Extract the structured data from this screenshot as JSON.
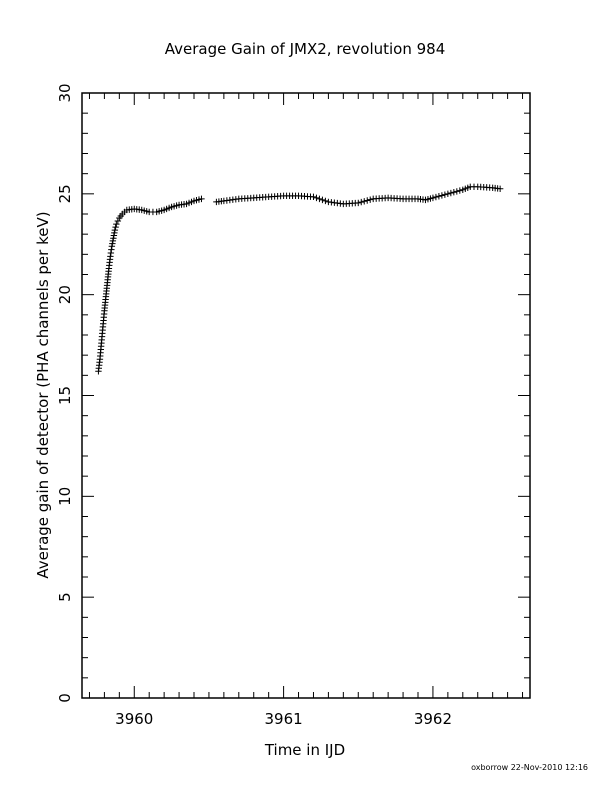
{
  "chart_data": {
    "type": "scatter",
    "title": "Average Gain of JMX2, revolution 984",
    "xlabel": "Time in IJD",
    "ylabel": "Average gain of detector (PHA channels per keV)",
    "xlim": [
      3959.65,
      3962.65
    ],
    "ylim": [
      0,
      30
    ],
    "x_ticks": [
      3960,
      3961,
      3962
    ],
    "y_ticks": [
      0,
      5,
      10,
      15,
      20,
      25,
      30
    ],
    "x_minor_step": 0.1,
    "y_minor_step": 1,
    "marker": "+",
    "grid": false,
    "series": [
      {
        "name": "",
        "segments": [
          [
            [
              3959.76,
              16.2
            ],
            [
              3959.77,
              16.8
            ],
            [
              3959.78,
              17.6
            ],
            [
              3959.79,
              18.4
            ],
            [
              3959.8,
              19.2
            ],
            [
              3959.81,
              19.9
            ],
            [
              3959.82,
              20.6
            ],
            [
              3959.83,
              21.3
            ],
            [
              3959.84,
              21.9
            ],
            [
              3959.85,
              22.4
            ],
            [
              3959.86,
              22.8
            ],
            [
              3959.87,
              23.2
            ],
            [
              3959.88,
              23.5
            ],
            [
              3959.9,
              23.8
            ],
            [
              3959.92,
              24.0
            ],
            [
              3959.95,
              24.2
            ],
            [
              3960.0,
              24.25
            ],
            [
              3960.05,
              24.2
            ],
            [
              3960.1,
              24.1
            ],
            [
              3960.15,
              24.1
            ],
            [
              3960.2,
              24.2
            ],
            [
              3960.25,
              24.35
            ],
            [
              3960.3,
              24.45
            ],
            [
              3960.35,
              24.5
            ],
            [
              3960.4,
              24.65
            ],
            [
              3960.45,
              24.75
            ]
          ],
          [
            [
              3960.55,
              24.6
            ],
            [
              3960.6,
              24.65
            ],
            [
              3960.7,
              24.75
            ],
            [
              3960.8,
              24.8
            ],
            [
              3960.9,
              24.85
            ],
            [
              3961.0,
              24.9
            ],
            [
              3961.1,
              24.9
            ],
            [
              3961.2,
              24.85
            ],
            [
              3961.3,
              24.6
            ],
            [
              3961.4,
              24.5
            ],
            [
              3961.5,
              24.55
            ],
            [
              3961.6,
              24.75
            ],
            [
              3961.7,
              24.8
            ],
            [
              3961.8,
              24.75
            ],
            [
              3961.9,
              24.75
            ],
            [
              3961.95,
              24.7
            ],
            [
              3962.0,
              24.8
            ],
            [
              3962.1,
              25.0
            ],
            [
              3962.2,
              25.2
            ],
            [
              3962.25,
              25.35
            ],
            [
              3962.3,
              25.35
            ],
            [
              3962.4,
              25.3
            ],
            [
              3962.45,
              25.25
            ]
          ]
        ]
      }
    ]
  },
  "footer": {
    "credit": "oxborrow 22-Nov-2010 12:16"
  }
}
